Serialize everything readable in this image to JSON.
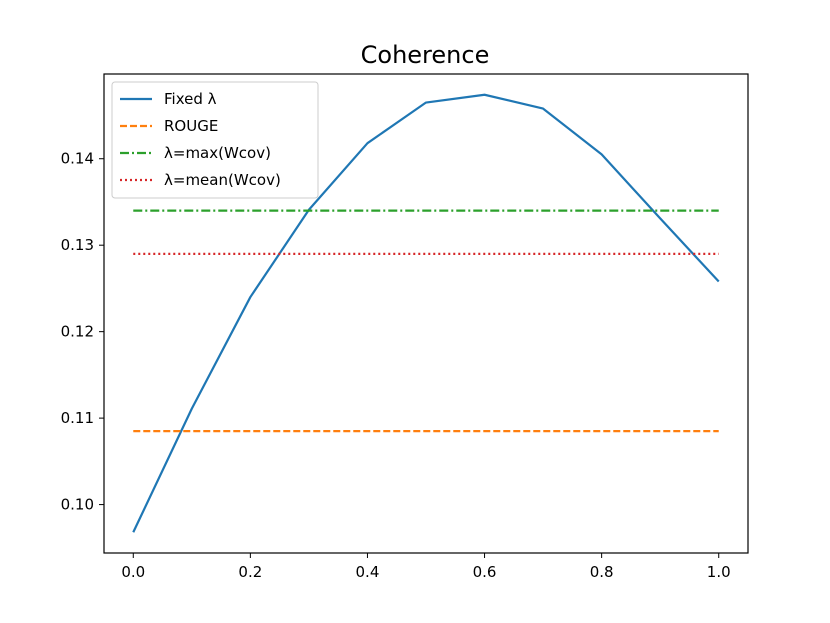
{
  "chart_data": {
    "type": "line",
    "title": "Coherence",
    "xlabel": "",
    "ylabel": "",
    "xlim": [
      -0.05,
      1.05
    ],
    "ylim": [
      0.0944,
      0.1498
    ],
    "x_ticks": [
      "0.0",
      "0.2",
      "0.4",
      "0.6",
      "0.8",
      "1.0"
    ],
    "x_tick_values": [
      0.0,
      0.2,
      0.4,
      0.6,
      0.8,
      1.0
    ],
    "y_ticks": [
      "0.10",
      "0.11",
      "0.12",
      "0.13",
      "0.14"
    ],
    "y_tick_values": [
      0.1,
      0.11,
      0.12,
      0.13,
      0.14
    ],
    "grid": false,
    "legend_position": "upper-left",
    "series": [
      {
        "name": "Fixed λ",
        "color": "#1f77b4",
        "style": "solid",
        "x": [
          0.0,
          0.1,
          0.2,
          0.3,
          0.4,
          0.5,
          0.6,
          0.7,
          0.8,
          0.9,
          1.0
        ],
        "y": [
          0.0968,
          0.1111,
          0.124,
          0.1341,
          0.1418,
          0.1465,
          0.1474,
          0.1458,
          0.1405,
          0.1331,
          0.1258
        ]
      },
      {
        "name": "ROUGE",
        "color": "#ff7f0e",
        "style": "dashed",
        "x": [
          0.0,
          1.0
        ],
        "y": [
          0.1085,
          0.1085
        ]
      },
      {
        "name": "λ=max(Wcov)",
        "color": "#2ca02c",
        "style": "dashdot",
        "x": [
          0.0,
          1.0
        ],
        "y": [
          0.134,
          0.134
        ]
      },
      {
        "name": "λ=mean(Wcov)",
        "color": "#d62728",
        "style": "dotted",
        "x": [
          0.0,
          1.0
        ],
        "y": [
          0.129,
          0.129
        ]
      }
    ]
  }
}
